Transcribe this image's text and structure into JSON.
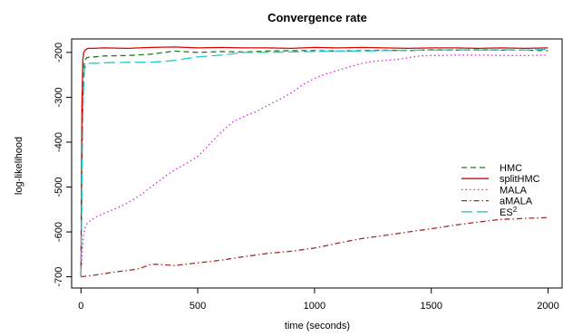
{
  "chart_data": {
    "type": "line",
    "title": "Convergence rate",
    "xlabel": "time (seconds)",
    "ylabel": "log-likelihood",
    "xlim": [
      -40,
      2060
    ],
    "ylim": [
      -725,
      -170
    ],
    "x_ticks": [
      0,
      500,
      1000,
      1500,
      2000
    ],
    "x_tick_labels": [
      "0",
      "500",
      "1000",
      "1500",
      "2000"
    ],
    "y_ticks": [
      -700,
      -600,
      -500,
      -400,
      -300,
      -200
    ],
    "y_tick_labels": [
      "-700",
      "-600",
      "-500",
      "-400",
      "-300",
      "-200"
    ],
    "grid": false,
    "legend": "right",
    "series": [
      {
        "name": "HMC",
        "legend_label": "HMC",
        "color": "#1b7a1b",
        "dash": "6,4",
        "x": [
          0,
          5,
          10,
          15,
          25,
          40,
          60,
          100,
          200,
          300,
          400,
          500,
          600,
          700,
          800,
          900,
          1000,
          1100,
          1200,
          1300,
          1400,
          1500,
          1600,
          1700,
          1800,
          1900,
          2000
        ],
        "y": [
          -700,
          -420,
          -260,
          -218,
          -212,
          -210,
          -210,
          -208,
          -207,
          -204,
          -197,
          -200,
          -198,
          -199,
          -197,
          -196,
          -196,
          -197,
          -196,
          -195,
          -196,
          -194,
          -195,
          -194,
          -195,
          -195,
          -196
        ]
      },
      {
        "name": "splitHMC",
        "legend_label": "splitHMC",
        "color": "#dd0000",
        "dash": "",
        "x": [
          0,
          4,
          8,
          12,
          20,
          30,
          50,
          100,
          200,
          300,
          400,
          500,
          600,
          700,
          800,
          900,
          1000,
          1100,
          1200,
          1300,
          1400,
          1500,
          1600,
          1700,
          1800,
          1900,
          2000
        ],
        "y": [
          -700,
          -330,
          -215,
          -200,
          -194,
          -191,
          -191,
          -190,
          -191,
          -189,
          -188,
          -190,
          -189,
          -190,
          -190,
          -191,
          -189,
          -190,
          -189,
          -190,
          -191,
          -190,
          -190,
          -191,
          -190,
          -191,
          -190
        ]
      },
      {
        "name": "MALA",
        "legend_label": "MALA",
        "color": "#dd22dd",
        "dash": "1.5,3",
        "x": [
          0,
          5,
          10,
          20,
          40,
          70,
          100,
          150,
          200,
          250,
          300,
          350,
          400,
          450,
          500,
          550,
          600,
          650,
          700,
          750,
          800,
          850,
          900,
          950,
          1000,
          1050,
          1100,
          1150,
          1200,
          1250,
          1300,
          1350,
          1400,
          1450,
          1500,
          1550,
          1600,
          1700,
          1800,
          1900,
          2000
        ],
        "y": [
          -700,
          -650,
          -610,
          -585,
          -575,
          -565,
          -558,
          -548,
          -535,
          -520,
          -500,
          -480,
          -462,
          -448,
          -432,
          -405,
          -378,
          -355,
          -342,
          -332,
          -318,
          -305,
          -290,
          -272,
          -258,
          -248,
          -240,
          -232,
          -225,
          -220,
          -218,
          -216,
          -212,
          -208,
          -207,
          -207,
          -206,
          -206,
          -207,
          -207,
          -206
        ]
      },
      {
        "name": "aMALA",
        "legend_label": "aMALA",
        "color": "#a52a2a",
        "dash": "6,3,1.5,3",
        "x": [
          0,
          50,
          100,
          150,
          200,
          250,
          300,
          350,
          400,
          450,
          500,
          600,
          700,
          800,
          900,
          1000,
          1100,
          1200,
          1300,
          1400,
          1500,
          1600,
          1700,
          1800,
          1900,
          2000
        ],
        "y": [
          -700,
          -697,
          -693,
          -689,
          -686,
          -682,
          -672,
          -673,
          -675,
          -672,
          -669,
          -663,
          -655,
          -648,
          -643,
          -636,
          -625,
          -615,
          -608,
          -600,
          -593,
          -585,
          -578,
          -572,
          -570,
          -568
        ]
      },
      {
        "name": "ES²",
        "legend_label": "ES",
        "legend_superscript": "2",
        "color": "#22cccc",
        "dash": "12,5",
        "x": [
          0,
          5,
          10,
          15,
          25,
          40,
          60,
          100,
          200,
          300,
          400,
          500,
          600,
          650,
          700,
          800,
          900,
          1000,
          1100,
          1200,
          1300,
          1400,
          1500,
          1600,
          1700,
          1800,
          1900,
          2000
        ],
        "y": [
          -700,
          -450,
          -300,
          -238,
          -225,
          -224,
          -224,
          -223,
          -222,
          -222,
          -218,
          -210,
          -206,
          -203,
          -200,
          -200,
          -199,
          -198,
          -197,
          -197,
          -196,
          -195,
          -195,
          -194,
          -195,
          -194,
          -195,
          -193
        ]
      }
    ]
  }
}
